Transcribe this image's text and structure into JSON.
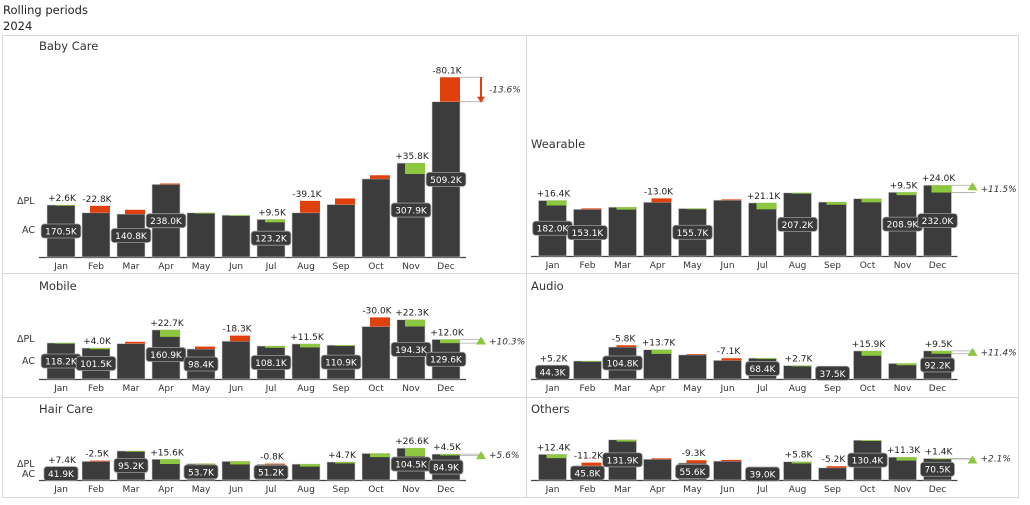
{
  "header": {
    "title": "Rolling periods",
    "year": "2024"
  },
  "row_labels": {
    "delta": "ΔPL",
    "actual": "AC"
  },
  "colors": {
    "actual": "#3c3c3c",
    "negative": "#e0400c",
    "positive": "#8dc63f",
    "axis": "#444444"
  },
  "chart_data": [
    {
      "type": "bar",
      "title": "Baby Care",
      "categories": [
        "Jan",
        "Feb",
        "Mar",
        "Apr",
        "May",
        "Jun",
        "Jul",
        "Aug",
        "Sep",
        "Oct",
        "Nov",
        "Dec"
      ],
      "ac": [
        170.5,
        145,
        140.8,
        238.0,
        145,
        137,
        123.2,
        145,
        172,
        256,
        307.9,
        509.2
      ],
      "ac_labels": [
        "170.5K",
        null,
        "140.8K",
        "238.0K",
        null,
        null,
        "123.2K",
        null,
        null,
        null,
        "307.9K",
        "509.2K"
      ],
      "delta_pl": [
        2.6,
        -22.8,
        -14,
        -3,
        1,
        0.5,
        9.5,
        -39.1,
        -20,
        -12,
        35.8,
        -80.1
      ],
      "delta_labels": [
        "+2.6K",
        "-22.8K",
        null,
        null,
        null,
        null,
        "+9.5K",
        "-39.1K",
        null,
        null,
        "+35.8K",
        "-80.1K"
      ],
      "percent_label": "-13.6%"
    },
    {
      "type": "bar",
      "title": "Wearable",
      "categories": [
        "Jan",
        "Feb",
        "Mar",
        "Apr",
        "May",
        "Jun",
        "Jul",
        "Aug",
        "Sep",
        "Oct",
        "Nov",
        "Dec"
      ],
      "ac": [
        182.0,
        153.1,
        160,
        176,
        155.7,
        183,
        174,
        207.2,
        177,
        188,
        208.9,
        232.0
      ],
      "ac_labels": [
        "182.0K",
        "153.1K",
        null,
        null,
        "155.7K",
        null,
        null,
        "207.2K",
        null,
        null,
        "208.9K",
        "232.0K"
      ],
      "delta_pl": [
        16.4,
        -3,
        8,
        -13.0,
        0.3,
        -2,
        21.1,
        3,
        9,
        12,
        9.5,
        24.0
      ],
      "delta_labels": [
        "+16.4K",
        null,
        null,
        "-13.0K",
        null,
        null,
        "+21.1K",
        null,
        null,
        null,
        "+9.5K",
        "+24.0K"
      ],
      "percent_label": "+11.5%"
    },
    {
      "type": "bar",
      "title": "Mobile",
      "categories": [
        "Jan",
        "Feb",
        "Mar",
        "Apr",
        "May",
        "Jun",
        "Jul",
        "Aug",
        "Sep",
        "Oct",
        "Nov",
        "Dec"
      ],
      "ac": [
        118.2,
        101.5,
        116,
        160.9,
        98.4,
        124,
        108.1,
        115,
        110.9,
        172,
        194.3,
        129.6
      ],
      "ac_labels": [
        "118.2K",
        "101.5K",
        null,
        "160.9K",
        "98.4K",
        null,
        "108.1K",
        null,
        "110.9K",
        null,
        "194.3K",
        "129.6K"
      ],
      "delta_pl": [
        1,
        4.0,
        -6,
        22.7,
        -8,
        -18.3,
        6,
        11.5,
        1,
        -30.0,
        22.3,
        12.0
      ],
      "delta_labels": [
        null,
        "+4.0K",
        null,
        "+22.7K",
        null,
        "-18.3K",
        null,
        "+11.5K",
        null,
        "-30.0K",
        "+22.3K",
        "+12.0K"
      ],
      "percent_label": "+10.3%"
    },
    {
      "type": "bar",
      "title": "Audio",
      "categories": [
        "Jan",
        "Feb",
        "Mar",
        "Apr",
        "May",
        "Jun",
        "Jul",
        "Aug",
        "Sep",
        "Oct",
        "Nov",
        "Dec"
      ],
      "ac": [
        44.3,
        59,
        104.8,
        96,
        79,
        61,
        68.4,
        44,
        37.5,
        92,
        51,
        92.2
      ],
      "ac_labels": [
        "44.3K",
        null,
        "104.8K",
        null,
        null,
        null,
        "68.4K",
        null,
        "37.5K",
        null,
        null,
        "92.2K"
      ],
      "delta_pl": [
        5.2,
        2,
        -5.8,
        13.7,
        -1,
        -7.1,
        3,
        2.7,
        2,
        15.9,
        6,
        9.5
      ],
      "delta_labels": [
        "+5.2K",
        null,
        "-5.8K",
        "+13.7K",
        null,
        "-7.1K",
        null,
        "+2.7K",
        null,
        "+15.9K",
        null,
        "+9.5K"
      ],
      "percent_label": "+11.4%"
    },
    {
      "type": "bar",
      "title": "Hair Care",
      "categories": [
        "Jan",
        "Feb",
        "Mar",
        "Apr",
        "May",
        "Jun",
        "Jul",
        "Aug",
        "Sep",
        "Oct",
        "Nov",
        "Dec"
      ],
      "ac": [
        41.9,
        61,
        95.2,
        68,
        53.7,
        61,
        51.2,
        52,
        59,
        87,
        104.5,
        84.9
      ],
      "ac_labels": [
        "41.9K",
        null,
        "95.2K",
        null,
        "53.7K",
        null,
        "51.2K",
        null,
        null,
        null,
        "104.5K",
        "84.9K"
      ],
      "delta_pl": [
        7.4,
        -2.5,
        2,
        15.6,
        2,
        10,
        -0.8,
        8,
        4.7,
        12,
        26.6,
        4.5
      ],
      "delta_labels": [
        "+7.4K",
        "-2.5K",
        null,
        "+15.6K",
        null,
        null,
        "-0.8K",
        null,
        "+4.7K",
        null,
        "+26.6K",
        "+4.5K"
      ],
      "percent_label": "+5.6%"
    },
    {
      "type": "bar",
      "title": "Others",
      "categories": [
        "Jan",
        "Feb",
        "Mar",
        "Apr",
        "May",
        "Jun",
        "Jul",
        "Aug",
        "Sep",
        "Oct",
        "Nov",
        "Dec"
      ],
      "ac": [
        84,
        45.8,
        131.9,
        68,
        55.6,
        62,
        39.0,
        60,
        40,
        130.4,
        75,
        70.5
      ],
      "ac_labels": [
        null,
        "45.8K",
        "131.9K",
        null,
        "55.6K",
        null,
        "39.0K",
        null,
        null,
        "130.4K",
        null,
        "70.5K"
      ],
      "delta_pl": [
        12.4,
        -11.2,
        6,
        -3,
        -9.3,
        -4,
        -3,
        5.8,
        -5.2,
        2,
        11.3,
        1.4
      ],
      "delta_labels": [
        "+12.4K",
        "-11.2K",
        null,
        null,
        "-9.3K",
        null,
        null,
        "+5.8K",
        "-5.2K",
        null,
        "+11.3K",
        "+1.4K"
      ],
      "percent_label": "+2.1%"
    }
  ]
}
